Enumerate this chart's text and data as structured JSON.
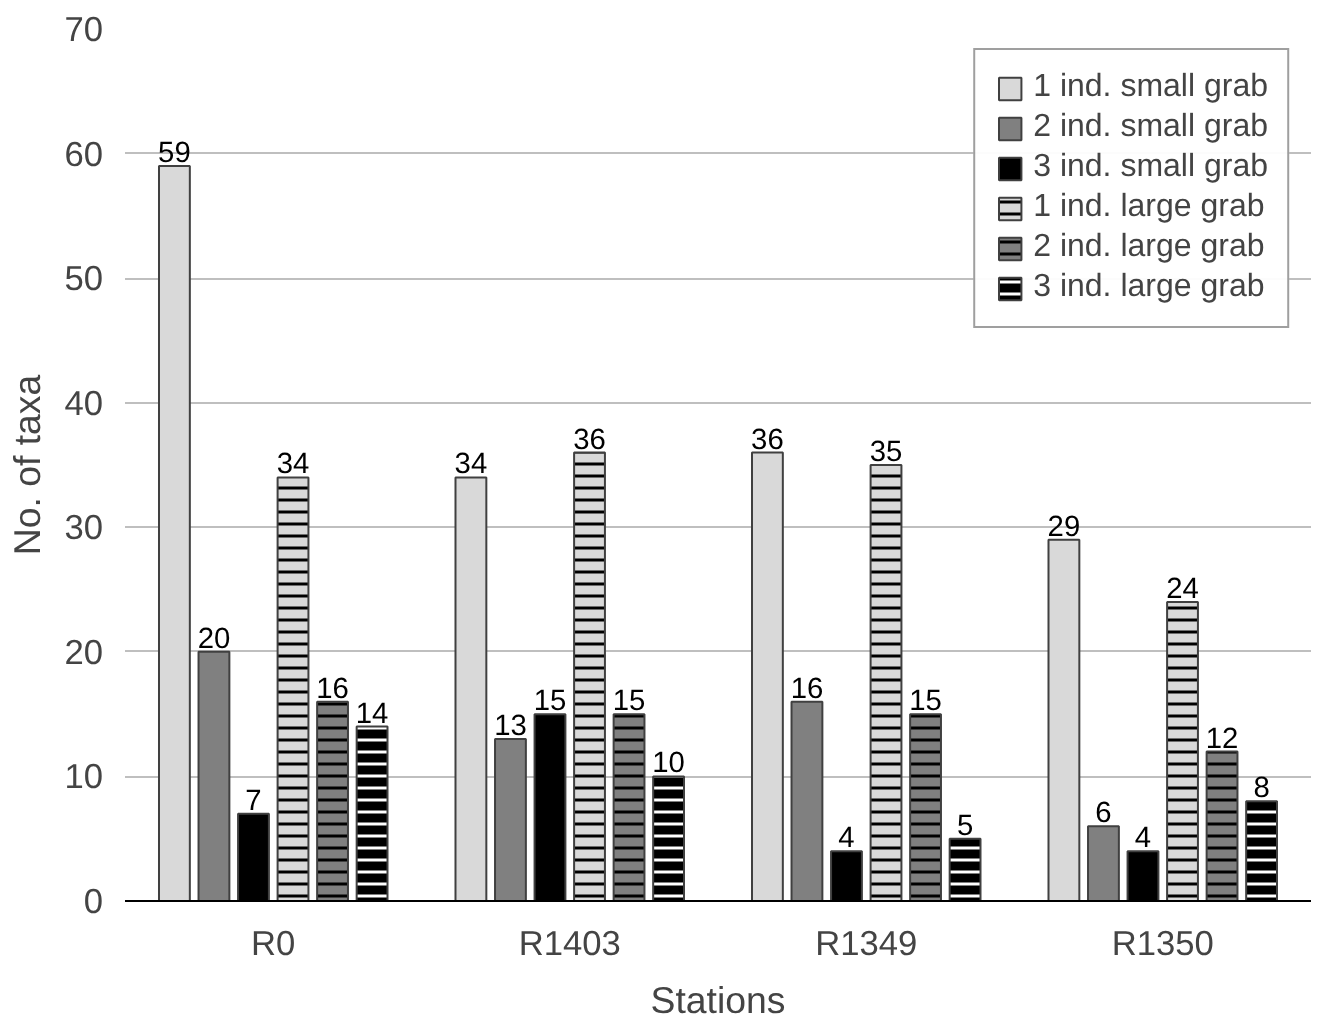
{
  "chart_data": {
    "type": "bar",
    "xlabel": "Stations",
    "ylabel": "No. of taxa",
    "categories": [
      "R0",
      "R1403",
      "R1349",
      "R1350"
    ],
    "series": [
      {
        "name": "1 ind. small grab",
        "color": "#d9d9d9",
        "values": [
          59,
          34,
          36,
          29
        ]
      },
      {
        "name": "2 ind. small grab",
        "color": "#808080",
        "values": [
          20,
          13,
          16,
          6
        ]
      },
      {
        "name": "3 ind. small grab",
        "color": "#000000",
        "values": [
          7,
          15,
          4,
          4
        ]
      },
      {
        "name": "1 ind. large grab",
        "color": "#d9d9d9",
        "values": [
          34,
          36,
          35,
          24
        ]
      },
      {
        "name": "2 ind. large grab",
        "color": "#808080",
        "values": [
          16,
          15,
          15,
          12
        ]
      },
      {
        "name": "3 ind. large grab",
        "color": "#000000",
        "values": [
          14,
          10,
          5,
          8
        ]
      }
    ],
    "ylim": [
      0,
      70
    ],
    "yticks": [
      0,
      10,
      20,
      30,
      40,
      50,
      60,
      70
    ],
    "grid": "y",
    "legend": "top right",
    "data_labels": true
  }
}
